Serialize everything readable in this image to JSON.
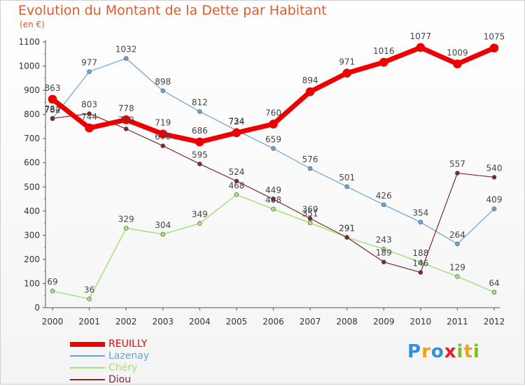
{
  "header": {
    "title": "Evolution du Montant de la Dette par Habitant",
    "subtitle": "(en €)"
  },
  "logo": {
    "letters": [
      {
        "ch": "P",
        "color": "#2f8fd8"
      },
      {
        "ch": "r",
        "color": "#f2a21a"
      },
      {
        "ch": "o",
        "color": "#2f8fd8"
      },
      {
        "ch": "x",
        "color": "#e0202a"
      },
      {
        "ch": "i",
        "color": "#7bbd2a"
      },
      {
        "ch": "t",
        "color": "#f2a21a"
      },
      {
        "ch": "i",
        "color": "#7bbd2a"
      }
    ]
  },
  "chart_data": {
    "type": "line",
    "title": "Evolution du Montant de la Dette par Habitant",
    "subtitle": "(en €)",
    "x": [
      "2000",
      "2001",
      "2002",
      "2003",
      "2004",
      "2005",
      "2006",
      "2007",
      "2008",
      "2009",
      "2010",
      "2011",
      "2012"
    ],
    "ylim": [
      0,
      1100
    ],
    "yticks": [
      0,
      100,
      200,
      300,
      400,
      500,
      600,
      700,
      800,
      900,
      1000,
      1100
    ],
    "grid": false,
    "legend_position": "bottom-left",
    "series": [
      {
        "name": "REUILLY",
        "color": "#ee0000",
        "stroke_width": 7,
        "marker_r": 6,
        "values": [
          863,
          744,
          778,
          719,
          686,
          724,
          760,
          894,
          971,
          1016,
          1077,
          1009,
          1075
        ]
      },
      {
        "name": "Lazenay",
        "color": "#6aa3d5",
        "stroke_width": 1.2,
        "marker_r": 3,
        "values": [
          782,
          977,
          1032,
          898,
          812,
          734,
          659,
          576,
          501,
          426,
          354,
          264,
          409
        ]
      },
      {
        "name": "Chéry",
        "color": "#a6e07a",
        "stroke_width": 1.5,
        "marker_r": 3,
        "values": [
          69,
          36,
          329,
          304,
          349,
          468,
          408,
          351,
          291,
          243,
          188,
          129,
          64
        ]
      },
      {
        "name": "Diou",
        "color": "#7a2a2a",
        "stroke_width": 1.2,
        "marker_r": 3,
        "values": [
          784,
          803,
          740,
          670,
          595,
          524,
          449,
          369,
          291,
          189,
          146,
          557,
          540
        ]
      }
    ]
  }
}
